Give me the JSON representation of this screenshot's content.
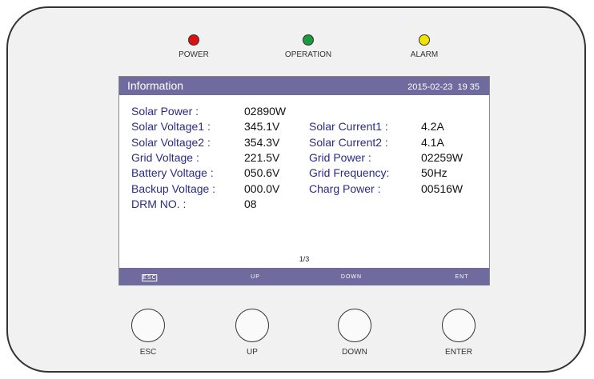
{
  "indicators": [
    "POWER",
    "OPERATION",
    "ALARM"
  ],
  "screen": {
    "title": "Information",
    "datetime": "2015-02-23  19 35",
    "rows": [
      {
        "label": "Solar Power :",
        "value": "02890W"
      },
      {
        "label": "Solar Voltage1 :",
        "value": "345.1V",
        "label2": "Solar Current1 :",
        "value2": "4.2A"
      },
      {
        "label": "Solar Voltage2 :",
        "value": "354.3V",
        "label2": "Solar Current2 :",
        "value2": "4.1A"
      },
      {
        "label": "Grid Voltage :",
        "value": "221.5V",
        "label2": "Grid Power :",
        "value2": "02259W"
      },
      {
        "label": "Battery Voltage :",
        "value": "050.6V",
        "label2": "Grid Frequency:",
        "value2": "50Hz"
      },
      {
        "label": "Backup Voltage :",
        "value": "000.0V",
        "label2": "Charg Power :",
        "value2": "00516W"
      },
      {
        "label": "DRM NO. :",
        "value": "08"
      }
    ],
    "page": "1/3",
    "softkeys": [
      "ESC",
      "UP",
      "DOWN",
      "ENT"
    ]
  },
  "buttons": [
    "ESC",
    "UP",
    "DOWN",
    "ENTER"
  ]
}
